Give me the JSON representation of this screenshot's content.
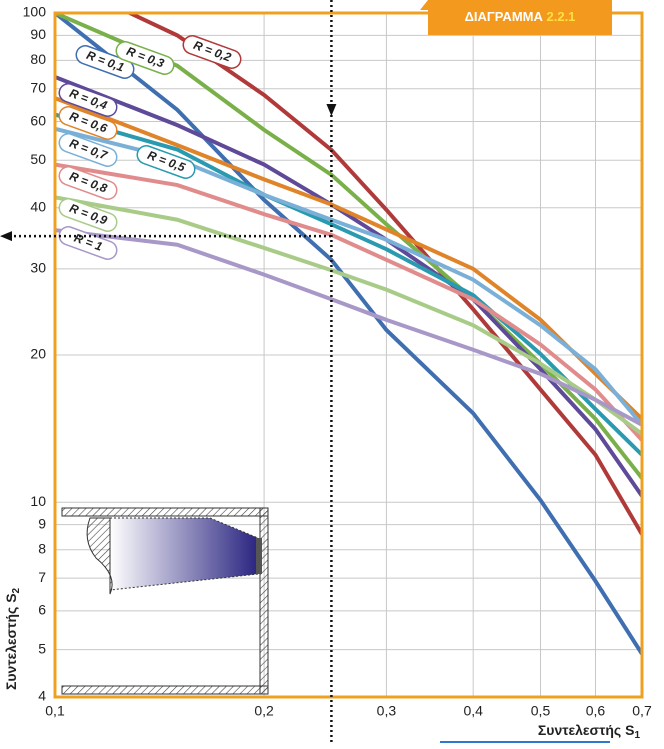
{
  "chart_data": {
    "type": "line",
    "title": "ΔΙΑΓΡΑΜΜΑ",
    "title_number": "2.2.1",
    "x_label": "Συντελεστής S",
    "x_label_sub": "1",
    "y_label": "Συντελεστής S",
    "y_label_sub": "2",
    "log_x": true,
    "log_y": true,
    "grid": true,
    "x": [
      0.1,
      0.15,
      0.2,
      0.25,
      0.3,
      0.4,
      0.5,
      0.6,
      0.7
    ],
    "xlim": [
      0.1,
      0.7
    ],
    "ylim": [
      4,
      100
    ],
    "xticks": [
      {
        "value": 0.1,
        "label": "0,1"
      },
      {
        "value": 0.2,
        "label": "0,2"
      },
      {
        "value": 0.3,
        "label": "0,3"
      },
      {
        "value": 0.4,
        "label": "0,4"
      },
      {
        "value": 0.5,
        "label": "0,5"
      },
      {
        "value": 0.6,
        "label": "0,6"
      },
      {
        "value": 0.7,
        "label": "0,7"
      }
    ],
    "yticks": [
      4,
      5,
      6,
      7,
      8,
      9,
      10,
      20,
      30,
      40,
      50,
      60,
      70,
      80,
      90,
      100
    ],
    "reference_x": 0.25,
    "reference_y": 35,
    "series": [
      {
        "name": "R = 0,1",
        "color": "#3f6fb0",
        "values": [
          100,
          63.4,
          41.5,
          31.3,
          22.5,
          15.2,
          10.1,
          6.9,
          4.9
        ]
      },
      {
        "name": "R = 0,2",
        "color": "#b03a3a",
        "values": [
          118,
          90,
          68,
          52.5,
          39.6,
          24.8,
          17,
          12.5,
          8.6
        ]
      },
      {
        "name": "R = 0,3",
        "color": "#7ab04a",
        "values": [
          100,
          78,
          57.7,
          46.7,
          37,
          26,
          19.2,
          14.8,
          11.2
        ]
      },
      {
        "name": "R = 0,4",
        "color": "#5e4a98",
        "values": [
          74,
          59,
          49,
          40.6,
          34.4,
          26,
          18.7,
          14.1,
          10.3
        ]
      },
      {
        "name": "R = 0,5",
        "color": "#2a9ab0",
        "values": [
          62,
          52.6,
          42.5,
          37,
          32.9,
          26.5,
          20.1,
          15.5,
          12.5
        ]
      },
      {
        "name": "R = 0,6",
        "color": "#e0842a",
        "values": [
          67,
          53.7,
          45.7,
          40.6,
          36.1,
          30,
          23.6,
          18.3,
          14.8
        ]
      },
      {
        "name": "R = 0,7",
        "color": "#7ab0d8",
        "values": [
          58,
          50.2,
          42.5,
          37.8,
          34.4,
          28.5,
          23,
          18.7,
          14.4
        ]
      },
      {
        "name": "R = 0,8",
        "color": "#e08c8c",
        "values": [
          49,
          44.5,
          38.8,
          35.2,
          31.3,
          26,
          21,
          17,
          13.4
        ]
      },
      {
        "name": "R = 0,9",
        "color": "#a8cc88",
        "values": [
          42,
          37.8,
          33.1,
          29.8,
          27.2,
          23,
          19.2,
          16.2,
          13.8
        ]
      },
      {
        "name": "R = 1",
        "color": "#a898c8",
        "values": [
          36,
          33.6,
          29.2,
          26,
          23.6,
          20.5,
          18.3,
          16.2,
          14.4
        ]
      }
    ]
  }
}
